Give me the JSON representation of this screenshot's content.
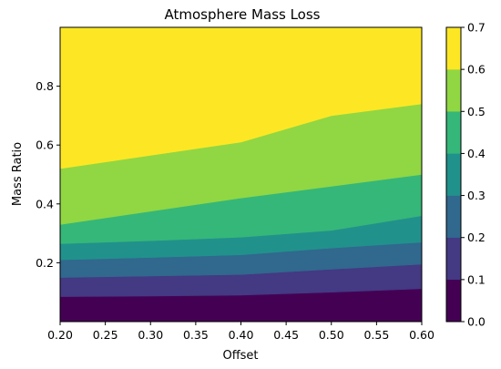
{
  "chart_data": {
    "type": "contour",
    "title": "Atmosphere Mass Loss",
    "xlabel": "Offset",
    "ylabel": "Mass Ratio",
    "xlim": [
      0.2,
      0.6
    ],
    "ylim": [
      0.0,
      1.0
    ],
    "x_ticks": [
      0.2,
      0.25,
      0.3,
      0.35,
      0.4,
      0.45,
      0.5,
      0.55,
      0.6
    ],
    "x_tick_labels": [
      "0.20",
      "0.25",
      "0.30",
      "0.35",
      "0.40",
      "0.45",
      "0.50",
      "0.55",
      "0.60"
    ],
    "y_ticks": [
      0.2,
      0.4,
      0.6,
      0.8
    ],
    "y_tick_labels": [
      "0.2",
      "0.4",
      "0.6",
      "0.8"
    ],
    "x": [
      0.2,
      0.3,
      0.4,
      0.5,
      0.6
    ],
    "levels": [
      0.0,
      0.1,
      0.2,
      0.3,
      0.4,
      0.5,
      0.6,
      0.7
    ],
    "level_colors": [
      "#440154",
      "#443983",
      "#31688e",
      "#21918c",
      "#35b779",
      "#90d743",
      "#fde725"
    ],
    "contour_boundaries": [
      {
        "level": 0.1,
        "y": [
          0.085,
          0.087,
          0.09,
          0.1,
          0.112
        ]
      },
      {
        "level": 0.2,
        "y": [
          0.15,
          0.155,
          0.16,
          0.178,
          0.195
        ]
      },
      {
        "level": 0.3,
        "y": [
          0.21,
          0.218,
          0.227,
          0.25,
          0.27
        ]
      },
      {
        "level": 0.4,
        "y": [
          0.265,
          0.275,
          0.287,
          0.31,
          0.36
        ]
      },
      {
        "level": 0.5,
        "y": [
          0.33,
          0.375,
          0.42,
          0.46,
          0.5
        ]
      },
      {
        "level": 0.6,
        "y": [
          0.52,
          0.565,
          0.61,
          0.7,
          0.74
        ]
      }
    ],
    "colorbar": {
      "ticks": [
        0.0,
        0.1,
        0.2,
        0.3,
        0.4,
        0.5,
        0.6,
        0.7
      ],
      "tick_labels": [
        "0.0",
        "0.1",
        "0.2",
        "0.3",
        "0.4",
        "0.5",
        "0.6",
        "0.7"
      ]
    },
    "grid": false
  }
}
